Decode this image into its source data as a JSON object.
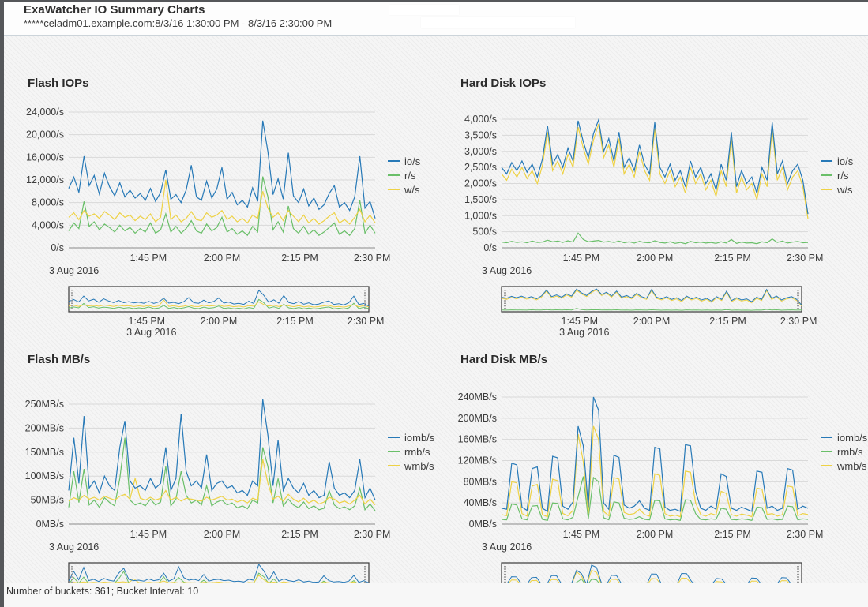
{
  "page": {
    "title": "ExaWatcher IO Summary Charts",
    "subtitle": "*****celadm01.example.com:8/3/16 1:30:00 PM - 8/3/16 2:30:00 PM",
    "footer": "Number of buckets: 361; Bucket Interval: 10"
  },
  "colors": {
    "io_line": "#2779b7",
    "read_line": "#6abf69",
    "write_line": "#eed245",
    "grid": "#d9d9d9",
    "axis_line": "#8a8a8a",
    "mini_border": "#3a3a3a",
    "sidebar": "#55575a"
  },
  "chart_data": [
    {
      "type": "line",
      "title": "Flash IOPs",
      "date_label": "3 Aug 2016",
      "x_ticks": [
        "1:45 PM",
        "2:00 PM",
        "2:15 PM",
        "2:30 PM"
      ],
      "y_ticks": [
        "24,000/s",
        "20,000/s",
        "16,000/s",
        "12,000/s",
        "8,000/s",
        "4,000/s",
        "0/s"
      ],
      "ylim": [
        0,
        24000
      ],
      "grid": true,
      "legend_position": "right",
      "legend": [
        {
          "label": "io/s",
          "color": "#2779b7"
        },
        {
          "label": "r/s",
          "color": "#6abf69"
        },
        {
          "label": "w/s",
          "color": "#eed245"
        }
      ],
      "series": [
        {
          "name": "io/s",
          "color": "#2779b7",
          "values": [
            10500,
            12500,
            9800,
            16200,
            11000,
            12800,
            9500,
            13200,
            10800,
            9200,
            11500,
            9000,
            10200,
            8800,
            9600,
            8400,
            10500,
            8200,
            9800,
            13800,
            8600,
            9400,
            8000,
            10200,
            14600,
            9000,
            8400,
            11800,
            8800,
            10400,
            14200,
            8600,
            9800,
            7600,
            8400,
            7200,
            10600,
            8200,
            22500,
            17000,
            9400,
            12200,
            8600,
            16800,
            9200,
            8000,
            10400,
            7400,
            8800,
            6800,
            7600,
            9600,
            11000,
            7200,
            8000,
            6600,
            9000,
            16200,
            7000,
            8200,
            5200
          ]
        },
        {
          "name": "r/s",
          "color": "#6abf69",
          "values": [
            3000,
            4400,
            3400,
            8200,
            3800,
            4600,
            3200,
            4200,
            3600,
            2800,
            4000,
            3000,
            3600,
            2600,
            3400,
            2800,
            4400,
            2600,
            3200,
            6000,
            2800,
            3800,
            2600,
            3400,
            4800,
            3000,
            2600,
            4200,
            3000,
            3600,
            5400,
            2800,
            3400,
            2400,
            3000,
            2200,
            3800,
            2800,
            12600,
            9000,
            3200,
            4600,
            2800,
            7400,
            3400,
            2600,
            3800,
            2400,
            3200,
            2200,
            2800,
            3600,
            4400,
            2400,
            3000,
            2200,
            3400,
            8400,
            2600,
            4000,
            2600
          ]
        },
        {
          "name": "w/s",
          "color": "#eed245",
          "values": [
            5400,
            6200,
            5000,
            6600,
            5600,
            6000,
            5200,
            6400,
            5800,
            5000,
            6200,
            5400,
            5800,
            4800,
            5600,
            5000,
            6000,
            4600,
            5400,
            12000,
            5000,
            5800,
            4600,
            5200,
            6400,
            5000,
            4800,
            6200,
            5400,
            5800,
            6600,
            5000,
            5600,
            4600,
            5200,
            4400,
            5800,
            5200,
            10000,
            7000,
            5400,
            6200,
            4800,
            6600,
            5600,
            4600,
            5800,
            4400,
            5200,
            4200,
            4800,
            5600,
            6200,
            4400,
            5000,
            4200,
            5400,
            6800,
            4600,
            5800,
            4400
          ]
        }
      ]
    },
    {
      "type": "line",
      "title": "Hard Disk IOPs",
      "date_label": "3 Aug 2016",
      "x_ticks": [
        "1:45 PM",
        "2:00 PM",
        "2:15 PM",
        "2:30 PM"
      ],
      "y_ticks": [
        "4,000/s",
        "3,500/s",
        "3,000/s",
        "2,500/s",
        "2,000/s",
        "1,500/s",
        "1,000/s",
        "500/s",
        "0/s"
      ],
      "ylim": [
        0,
        4000
      ],
      "grid": true,
      "legend_position": "right",
      "legend": [
        {
          "label": "io/s",
          "color": "#2779b7"
        },
        {
          "label": "r/s",
          "color": "#6abf69"
        },
        {
          "label": "w/s",
          "color": "#eed245"
        }
      ],
      "series": [
        {
          "name": "io/s",
          "color": "#2779b7",
          "values": [
            2500,
            2300,
            2650,
            2400,
            2700,
            2350,
            2600,
            2200,
            2750,
            3800,
            2600,
            2900,
            2500,
            3100,
            2700,
            3950,
            3300,
            2800,
            3550,
            3980,
            3000,
            3400,
            2700,
            3600,
            2500,
            2800,
            2400,
            3200,
            2600,
            2300,
            3900,
            2500,
            2200,
            2600,
            2100,
            2400,
            1900,
            2700,
            2200,
            2500,
            2000,
            2300,
            1800,
            2600,
            2100,
            3600,
            1900,
            2400,
            2000,
            2200,
            1700,
            2500,
            2100,
            3900,
            2300,
            2700,
            2000,
            2400,
            2600,
            2100,
            1050
          ]
        },
        {
          "name": "r/s",
          "color": "#6abf69",
          "values": [
            180,
            160,
            200,
            170,
            190,
            160,
            210,
            170,
            180,
            240,
            190,
            210,
            170,
            220,
            180,
            460,
            260,
            190,
            210,
            230,
            180,
            200,
            170,
            210,
            160,
            190,
            150,
            200,
            170,
            160,
            220,
            170,
            150,
            190,
            140,
            170,
            130,
            200,
            160,
            180,
            150,
            170,
            140,
            190,
            150,
            260,
            140,
            180,
            150,
            160,
            130,
            190,
            160,
            280,
            170,
            210,
            150,
            180,
            200,
            160,
            170
          ]
        },
        {
          "name": "w/s",
          "color": "#eed245",
          "values": [
            2300,
            2100,
            2450,
            2200,
            2500,
            2150,
            2400,
            2000,
            2550,
            3600,
            2400,
            2700,
            2300,
            2900,
            2500,
            3750,
            3100,
            2600,
            3350,
            3850,
            2800,
            3200,
            2500,
            3400,
            2300,
            2600,
            2200,
            3000,
            2400,
            2100,
            3700,
            2300,
            2000,
            2400,
            1900,
            2200,
            1700,
            2500,
            2000,
            2300,
            1800,
            2100,
            1600,
            2400,
            1900,
            3400,
            1700,
            2200,
            1800,
            2000,
            1500,
            2300,
            1900,
            3700,
            2100,
            2500,
            1800,
            2200,
            2400,
            1900,
            900
          ]
        }
      ]
    },
    {
      "type": "line",
      "title": "Flash MB/s",
      "date_label": "3 Aug 2016",
      "x_ticks": [
        "1:45 PM",
        "2:00 PM",
        "2:15 PM",
        "2:30 PM"
      ],
      "y_ticks": [
        "250MB/s",
        "200MB/s",
        "150MB/s",
        "100MB/s",
        "50MB/s",
        "0MB/s"
      ],
      "ylim": [
        0,
        250
      ],
      "grid": true,
      "legend_position": "right",
      "legend": [
        {
          "label": "iomb/s",
          "color": "#2779b7"
        },
        {
          "label": "rmb/s",
          "color": "#6abf69"
        },
        {
          "label": "wmb/s",
          "color": "#eed245"
        }
      ],
      "series": [
        {
          "name": "iomb/s",
          "color": "#2779b7",
          "values": [
            70,
            180,
            85,
            225,
            75,
            90,
            65,
            100,
            80,
            70,
            160,
            215,
            90,
            75,
            80,
            70,
            95,
            75,
            85,
            160,
            70,
            95,
            230,
            110,
            80,
            90,
            75,
            145,
            70,
            85,
            90,
            75,
            80,
            65,
            70,
            60,
            90,
            80,
            260,
            185,
            80,
            175,
            70,
            95,
            75,
            65,
            85,
            60,
            70,
            55,
            60,
            130,
            75,
            60,
            65,
            55,
            70,
            135,
            55,
            75,
            50
          ]
        },
        {
          "name": "rmb/s",
          "color": "#6abf69",
          "values": [
            35,
            110,
            45,
            115,
            40,
            50,
            35,
            55,
            45,
            38,
            95,
            180,
            50,
            40,
            44,
            38,
            52,
            40,
            46,
            120,
            38,
            52,
            110,
            60,
            44,
            50,
            40,
            80,
            38,
            46,
            50,
            40,
            44,
            34,
            38,
            32,
            50,
            44,
            160,
            120,
            44,
            95,
            38,
            52,
            40,
            34,
            46,
            32,
            38,
            30,
            33,
            70,
            40,
            32,
            36,
            30,
            38,
            75,
            30,
            42,
            28
          ]
        },
        {
          "name": "wmb/s",
          "color": "#eed245",
          "values": [
            48,
            55,
            50,
            60,
            52,
            56,
            50,
            58,
            54,
            50,
            58,
            62,
            52,
            95,
            54,
            50,
            56,
            50,
            54,
            70,
            50,
            56,
            48,
            54,
            52,
            50,
            48,
            56,
            50,
            54,
            58,
            50,
            52,
            46,
            50,
            44,
            54,
            50,
            135,
            85,
            52,
            58,
            48,
            62,
            52,
            46,
            54,
            44,
            50,
            42,
            46,
            56,
            52,
            44,
            48,
            42,
            50,
            60,
            42,
            52,
            40
          ]
        }
      ]
    },
    {
      "type": "line",
      "title": "Hard Disk MB/s",
      "date_label": "3 Aug 2016",
      "x_ticks": [
        "1:45 PM",
        "2:00 PM",
        "2:15 PM",
        "2:30 PM"
      ],
      "y_ticks": [
        "240MB/s",
        "200MB/s",
        "160MB/s",
        "120MB/s",
        "80MB/s",
        "40MB/s",
        "0MB/s"
      ],
      "ylim": [
        0,
        240
      ],
      "grid": true,
      "legend_position": "right",
      "legend": [
        {
          "label": "iomb/s",
          "color": "#2779b7"
        },
        {
          "label": "rmb/s",
          "color": "#6abf69"
        },
        {
          "label": "wmb/s",
          "color": "#eed245"
        }
      ],
      "series": [
        {
          "name": "iomb/s",
          "color": "#2779b7",
          "values": [
            30,
            28,
            115,
            112,
            32,
            26,
            105,
            108,
            30,
            24,
            128,
            125,
            34,
            28,
            42,
            185,
            148,
            32,
            240,
            215,
            40,
            28,
            130,
            126,
            36,
            30,
            34,
            44,
            30,
            26,
            145,
            142,
            32,
            26,
            28,
            24,
            150,
            148,
            62,
            30,
            26,
            34,
            28,
            95,
            90,
            30,
            26,
            32,
            28,
            24,
            100,
            98,
            30,
            34,
            26,
            30,
            105,
            102,
            28,
            34,
            30
          ]
        },
        {
          "name": "rmb/s",
          "color": "#6abf69",
          "values": [
            9,
            8,
            38,
            36,
            10,
            8,
            34,
            35,
            9,
            7,
            40,
            39,
            10,
            8,
            13,
            52,
            90,
            10,
            88,
            80,
            12,
            8,
            42,
            40,
            11,
            9,
            10,
            14,
            9,
            8,
            45,
            44,
            10,
            8,
            9,
            7,
            46,
            45,
            20,
            9,
            8,
            10,
            9,
            30,
            28,
            9,
            8,
            10,
            9,
            7,
            32,
            31,
            9,
            10,
            8,
            9,
            34,
            33,
            8,
            10,
            9
          ]
        },
        {
          "name": "wmb/s",
          "color": "#eed245",
          "values": [
            18,
            16,
            80,
            78,
            20,
            15,
            72,
            75,
            18,
            14,
            85,
            82,
            20,
            16,
            26,
            170,
            118,
            20,
            185,
            160,
            24,
            16,
            88,
            85,
            22,
            18,
            20,
            28,
            18,
            15,
            95,
            92,
            20,
            15,
            17,
            14,
            100,
            98,
            40,
            18,
            15,
            20,
            17,
            62,
            58,
            18,
            15,
            19,
            17,
            14,
            68,
            66,
            18,
            20,
            15,
            18,
            72,
            70,
            16,
            20,
            18
          ]
        }
      ]
    }
  ]
}
